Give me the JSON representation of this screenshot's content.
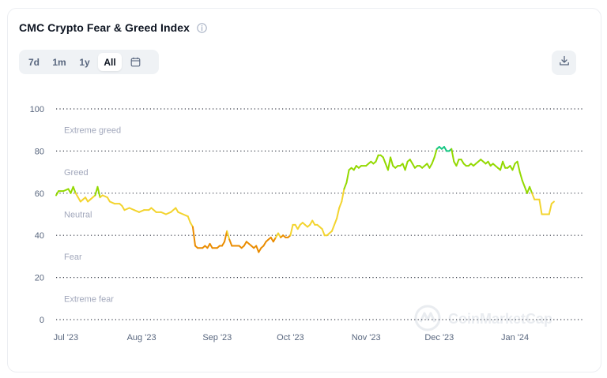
{
  "header": {
    "title": "CMC Crypto Fear & Greed Index"
  },
  "range_buttons": [
    {
      "label": "7d",
      "active": false
    },
    {
      "label": "1m",
      "active": false
    },
    {
      "label": "1y",
      "active": false
    },
    {
      "label": "All",
      "active": true
    }
  ],
  "icons": {
    "info": "info-icon",
    "calendar": "calendar-icon",
    "download": "download-icon"
  },
  "watermark": "CoinMarketCap",
  "colors": {
    "extreme_greed": "#16c784",
    "greed": "#93d900",
    "neutral": "#f3d42f",
    "fear": "#ea8c00",
    "extreme_fear": "#ea3943"
  },
  "chart_data": {
    "type": "line",
    "title": "CMC Crypto Fear & Greed Index",
    "xlabel": "",
    "ylabel": "",
    "ylim": [
      0,
      100
    ],
    "yticks": [
      0,
      20,
      40,
      60,
      80,
      100
    ],
    "grid": true,
    "xlim": [
      "2023-06-27",
      "2024-01-29"
    ],
    "xticks": [
      {
        "label": "Jul '23",
        "date": "2023-07-01"
      },
      {
        "label": "Aug '23",
        "date": "2023-08-01"
      },
      {
        "label": "Sep '23",
        "date": "2023-09-01"
      },
      {
        "label": "Oct '23",
        "date": "2023-10-01"
      },
      {
        "label": "Nov '23",
        "date": "2023-11-01"
      },
      {
        "label": "Dec '23",
        "date": "2023-12-01"
      },
      {
        "label": "Jan '24",
        "date": "2024-01-01"
      }
    ],
    "zones": [
      {
        "label": "Extreme greed",
        "from": 80,
        "to": 100
      },
      {
        "label": "Greed",
        "from": 60,
        "to": 80
      },
      {
        "label": "Neutral",
        "from": 40,
        "to": 60
      },
      {
        "label": "Fear",
        "from": 20,
        "to": 40
      },
      {
        "label": "Extreme fear",
        "from": 0,
        "to": 20
      }
    ],
    "series": [
      {
        "points": [
          [
            "2023-06-27",
            59
          ],
          [
            "2023-06-28",
            61
          ],
          [
            "2023-06-30",
            61
          ],
          [
            "2023-07-02",
            62
          ],
          [
            "2023-07-03",
            60
          ],
          [
            "2023-07-04",
            63
          ],
          [
            "2023-07-05",
            60
          ],
          [
            "2023-07-06",
            58
          ],
          [
            "2023-07-07",
            56
          ],
          [
            "2023-07-08",
            57
          ],
          [
            "2023-07-09",
            58
          ],
          [
            "2023-07-10",
            56
          ],
          [
            "2023-07-11",
            57
          ],
          [
            "2023-07-12",
            58
          ],
          [
            "2023-07-13",
            59
          ],
          [
            "2023-07-14",
            63
          ],
          [
            "2023-07-15",
            58
          ],
          [
            "2023-07-16",
            59
          ],
          [
            "2023-07-18",
            58
          ],
          [
            "2023-07-19",
            56
          ],
          [
            "2023-07-21",
            55
          ],
          [
            "2023-07-23",
            55
          ],
          [
            "2023-07-24",
            54
          ],
          [
            "2023-07-25",
            52
          ],
          [
            "2023-07-27",
            53
          ],
          [
            "2023-07-29",
            52
          ],
          [
            "2023-07-31",
            51
          ],
          [
            "2023-08-02",
            52
          ],
          [
            "2023-08-04",
            52
          ],
          [
            "2023-08-05",
            53
          ],
          [
            "2023-08-06",
            52
          ],
          [
            "2023-08-07",
            51
          ],
          [
            "2023-08-09",
            51
          ],
          [
            "2023-08-11",
            50
          ],
          [
            "2023-08-13",
            51
          ],
          [
            "2023-08-15",
            53
          ],
          [
            "2023-08-16",
            51
          ],
          [
            "2023-08-18",
            50
          ],
          [
            "2023-08-20",
            49
          ],
          [
            "2023-08-21",
            46
          ],
          [
            "2023-08-22",
            44
          ],
          [
            "2023-08-23",
            35
          ],
          [
            "2023-08-24",
            34
          ],
          [
            "2023-08-26",
            34
          ],
          [
            "2023-08-27",
            35
          ],
          [
            "2023-08-28",
            34
          ],
          [
            "2023-08-29",
            36
          ],
          [
            "2023-08-30",
            34
          ],
          [
            "2023-09-01",
            34
          ],
          [
            "2023-09-02",
            35
          ],
          [
            "2023-09-03",
            35
          ],
          [
            "2023-09-04",
            37
          ],
          [
            "2023-09-05",
            42
          ],
          [
            "2023-09-06",
            38
          ],
          [
            "2023-09-07",
            35
          ],
          [
            "2023-09-08",
            35
          ],
          [
            "2023-09-10",
            35
          ],
          [
            "2023-09-11",
            34
          ],
          [
            "2023-09-12",
            35
          ],
          [
            "2023-09-13",
            37
          ],
          [
            "2023-09-14",
            36
          ],
          [
            "2023-09-15",
            35
          ],
          [
            "2023-09-16",
            34
          ],
          [
            "2023-09-17",
            35
          ],
          [
            "2023-09-18",
            32
          ],
          [
            "2023-09-19",
            34
          ],
          [
            "2023-09-20",
            35
          ],
          [
            "2023-09-21",
            37
          ],
          [
            "2023-09-22",
            38
          ],
          [
            "2023-09-23",
            39
          ],
          [
            "2023-09-24",
            37
          ],
          [
            "2023-09-25",
            39
          ],
          [
            "2023-09-26",
            41
          ],
          [
            "2023-09-27",
            39
          ],
          [
            "2023-09-28",
            40
          ],
          [
            "2023-09-29",
            39
          ],
          [
            "2023-09-30",
            39
          ],
          [
            "2023-10-01",
            40
          ],
          [
            "2023-10-02",
            45
          ],
          [
            "2023-10-03",
            45
          ],
          [
            "2023-10-04",
            43
          ],
          [
            "2023-10-05",
            45
          ],
          [
            "2023-10-06",
            46
          ],
          [
            "2023-10-07",
            45
          ],
          [
            "2023-10-08",
            44
          ],
          [
            "2023-10-09",
            45
          ],
          [
            "2023-10-10",
            47
          ],
          [
            "2023-10-11",
            45
          ],
          [
            "2023-10-12",
            45
          ],
          [
            "2023-10-13",
            44
          ],
          [
            "2023-10-14",
            43
          ],
          [
            "2023-10-15",
            40
          ],
          [
            "2023-10-16",
            40
          ],
          [
            "2023-10-17",
            41
          ],
          [
            "2023-10-18",
            42
          ],
          [
            "2023-10-19",
            45
          ],
          [
            "2023-10-20",
            48
          ],
          [
            "2023-10-21",
            53
          ],
          [
            "2023-10-22",
            56
          ],
          [
            "2023-10-23",
            62
          ],
          [
            "2023-10-24",
            65
          ],
          [
            "2023-10-25",
            71
          ],
          [
            "2023-10-26",
            72
          ],
          [
            "2023-10-27",
            71
          ],
          [
            "2023-10-28",
            73
          ],
          [
            "2023-10-29",
            72
          ],
          [
            "2023-10-30",
            73
          ],
          [
            "2023-11-01",
            73
          ],
          [
            "2023-11-02",
            74
          ],
          [
            "2023-11-03",
            75
          ],
          [
            "2023-11-04",
            74
          ],
          [
            "2023-11-05",
            75
          ],
          [
            "2023-11-06",
            78
          ],
          [
            "2023-11-07",
            78
          ],
          [
            "2023-11-08",
            77
          ],
          [
            "2023-11-09",
            74
          ],
          [
            "2023-11-10",
            71
          ],
          [
            "2023-11-11",
            77
          ],
          [
            "2023-11-12",
            73
          ],
          [
            "2023-11-13",
            72
          ],
          [
            "2023-11-14",
            73
          ],
          [
            "2023-11-15",
            73
          ],
          [
            "2023-11-16",
            74
          ],
          [
            "2023-11-17",
            71
          ],
          [
            "2023-11-18",
            75
          ],
          [
            "2023-11-19",
            76
          ],
          [
            "2023-11-20",
            74
          ],
          [
            "2023-11-21",
            72
          ],
          [
            "2023-11-22",
            73
          ],
          [
            "2023-11-23",
            73
          ],
          [
            "2023-11-24",
            72
          ],
          [
            "2023-11-25",
            73
          ],
          [
            "2023-11-26",
            74
          ],
          [
            "2023-11-27",
            72
          ],
          [
            "2023-11-28",
            74
          ],
          [
            "2023-11-29",
            77
          ],
          [
            "2023-11-30",
            81
          ],
          [
            "2023-12-01",
            82
          ],
          [
            "2023-12-02",
            81
          ],
          [
            "2023-12-03",
            82
          ],
          [
            "2023-12-04",
            80
          ],
          [
            "2023-12-05",
            80
          ],
          [
            "2023-12-06",
            81
          ],
          [
            "2023-12-07",
            75
          ],
          [
            "2023-12-08",
            73
          ],
          [
            "2023-12-09",
            76
          ],
          [
            "2023-12-10",
            76
          ],
          [
            "2023-12-11",
            74
          ],
          [
            "2023-12-12",
            73
          ],
          [
            "2023-12-13",
            73
          ],
          [
            "2023-12-14",
            74
          ],
          [
            "2023-12-15",
            73
          ],
          [
            "2023-12-16",
            74
          ],
          [
            "2023-12-17",
            75
          ],
          [
            "2023-12-18",
            76
          ],
          [
            "2023-12-19",
            75
          ],
          [
            "2023-12-20",
            74
          ],
          [
            "2023-12-21",
            75
          ],
          [
            "2023-12-22",
            73
          ],
          [
            "2023-12-23",
            74
          ],
          [
            "2023-12-24",
            73
          ],
          [
            "2023-12-25",
            72
          ],
          [
            "2023-12-26",
            71
          ],
          [
            "2023-12-27",
            75
          ],
          [
            "2023-12-28",
            72
          ],
          [
            "2023-12-29",
            72
          ],
          [
            "2023-12-30",
            73
          ],
          [
            "2023-12-31",
            71
          ],
          [
            "2024-01-01",
            74
          ],
          [
            "2024-01-02",
            75
          ],
          [
            "2024-01-03",
            70
          ],
          [
            "2024-01-04",
            66
          ],
          [
            "2024-01-05",
            63
          ],
          [
            "2024-01-06",
            60
          ],
          [
            "2024-01-07",
            63
          ],
          [
            "2024-01-08",
            60
          ],
          [
            "2024-01-09",
            57
          ],
          [
            "2024-01-10",
            57
          ],
          [
            "2024-01-11",
            57
          ],
          [
            "2024-01-12",
            50
          ],
          [
            "2024-01-13",
            50
          ],
          [
            "2024-01-14",
            50
          ],
          [
            "2024-01-15",
            50
          ],
          [
            "2024-01-16",
            55
          ],
          [
            "2024-01-17",
            56
          ]
        ]
      }
    ]
  }
}
